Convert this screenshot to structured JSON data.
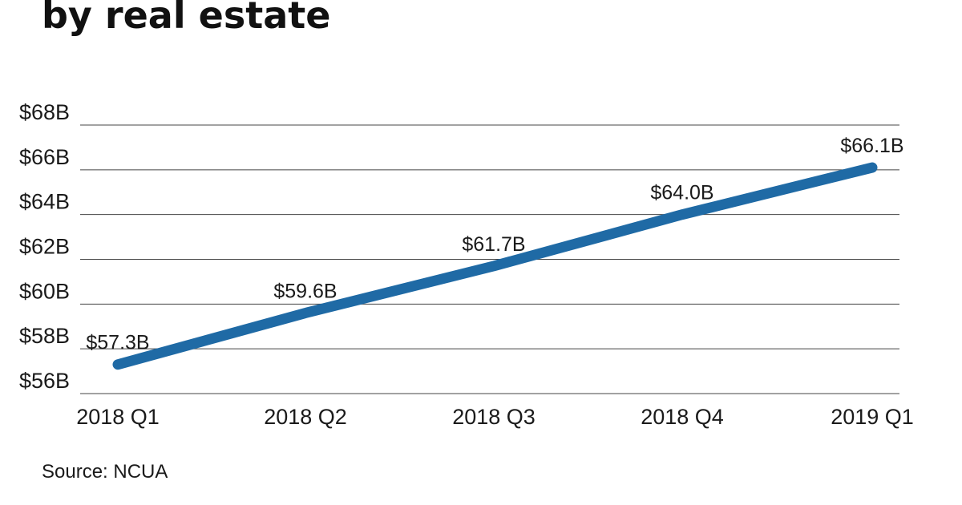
{
  "chart_data": {
    "type": "line",
    "title": "by real estate",
    "categories": [
      "2018 Q1",
      "2018 Q2",
      "2018 Q3",
      "2018 Q4",
      "2019 Q1"
    ],
    "series": [
      {
        "values": [
          57.3,
          59.6,
          61.7,
          64.0,
          66.1
        ],
        "labels": [
          "$57.3B",
          "$59.6B",
          "$61.7B",
          "$64.0B",
          "$66.1B"
        ],
        "color": "#1f6aa5"
      }
    ],
    "ylim": [
      56,
      68
    ],
    "y_ticks": [
      56,
      58,
      60,
      62,
      64,
      66,
      68
    ],
    "y_tick_labels": [
      "$56B",
      "$58B",
      "$60B",
      "$62B",
      "$64B",
      "$66B",
      "$68B"
    ],
    "grid": true,
    "gridline_color": "#444444"
  },
  "source": "Source: NCUA"
}
